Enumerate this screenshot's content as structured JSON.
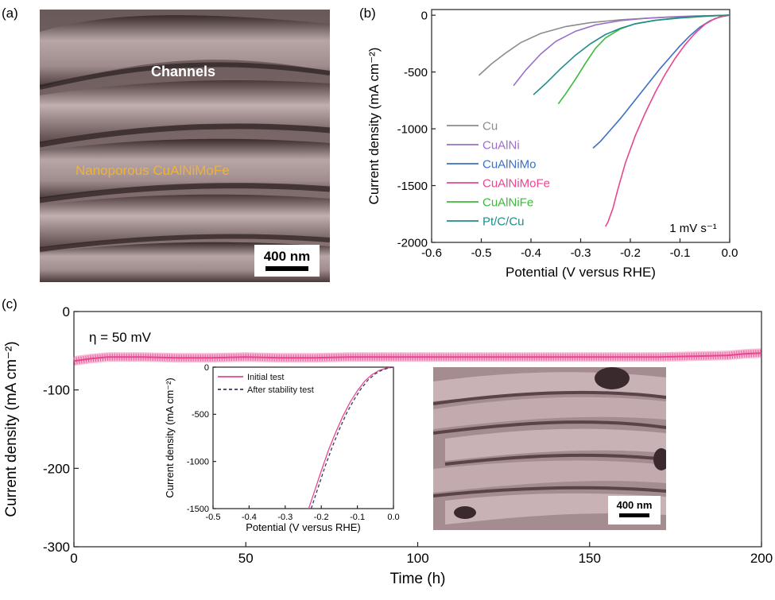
{
  "panels": {
    "a": {
      "letter": "(a)",
      "labels": [
        "Channels",
        "Nanoporous CuAlNiMoFe"
      ],
      "scalebar": "400 nm",
      "colors": {
        "label_white": "#ffffff",
        "label_orange": "#f2b233",
        "sem_base": "#9a8585"
      }
    },
    "b": {
      "letter": "(b)",
      "rate_label": "1 mV s⁻¹"
    },
    "c": {
      "letter": "(c)",
      "eta_label": "η = 50 mV",
      "inset_scalebar": "400 nm"
    }
  },
  "chart_data": [
    {
      "id": "b",
      "type": "line",
      "xlabel": "Potential (V versus RHE)",
      "ylabel": "Current density (mA cm⁻²)",
      "xlim": [
        -0.6,
        0.0
      ],
      "ylim": [
        -2000,
        50
      ],
      "xticks": [
        -0.6,
        -0.5,
        -0.4,
        -0.3,
        -0.2,
        -0.1,
        0.0
      ],
      "xtick_labels": [
        "-0.6",
        "-0.5",
        "-0.4",
        "-0.3",
        "-0.2",
        "-0.1",
        "0.0"
      ],
      "yticks": [
        0,
        -500,
        -1000,
        -1500,
        -2000
      ],
      "ytick_labels": [
        "0",
        "-500",
        "-1000",
        "-1500",
        "-2000"
      ],
      "legend_position": "bottom-left",
      "series": [
        {
          "name": "Cu",
          "color": "#8c8c8c",
          "x": [
            -0.505,
            -0.48,
            -0.45,
            -0.42,
            -0.38,
            -0.33,
            -0.28,
            -0.22,
            -0.15,
            -0.08,
            -0.02,
            0.0
          ],
          "y": [
            -530,
            -430,
            -330,
            -240,
            -160,
            -100,
            -65,
            -40,
            -22,
            -10,
            -3,
            0
          ]
        },
        {
          "name": "CuAlNi",
          "color": "#9b6fc6",
          "x": [
            -0.435,
            -0.41,
            -0.38,
            -0.35,
            -0.31,
            -0.27,
            -0.22,
            -0.17,
            -0.12,
            -0.07,
            -0.02,
            0.0
          ],
          "y": [
            -620,
            -480,
            -340,
            -230,
            -140,
            -85,
            -48,
            -28,
            -15,
            -7,
            -2,
            0
          ]
        },
        {
          "name": "CuAlNiMo",
          "color": "#3c6fc5",
          "x": [
            -0.275,
            -0.26,
            -0.24,
            -0.22,
            -0.2,
            -0.18,
            -0.16,
            -0.14,
            -0.12,
            -0.1,
            -0.08,
            -0.06,
            -0.04,
            -0.02,
            0.0
          ],
          "y": [
            -1170,
            -1110,
            -1010,
            -910,
            -800,
            -690,
            -580,
            -470,
            -370,
            -270,
            -180,
            -105,
            -50,
            -15,
            0
          ]
        },
        {
          "name": "CuAlNiMoFe",
          "color": "#e8468f",
          "x": [
            -0.25,
            -0.245,
            -0.235,
            -0.225,
            -0.21,
            -0.19,
            -0.17,
            -0.15,
            -0.13,
            -0.11,
            -0.09,
            -0.07,
            -0.05,
            -0.03,
            -0.01,
            0.0
          ],
          "y": [
            -1860,
            -1820,
            -1700,
            -1530,
            -1300,
            -1060,
            -860,
            -680,
            -520,
            -380,
            -260,
            -160,
            -80,
            -30,
            -5,
            0
          ]
        },
        {
          "name": "CuAlNiFe",
          "color": "#3cb83c",
          "x": [
            -0.345,
            -0.33,
            -0.31,
            -0.29,
            -0.27,
            -0.25,
            -0.22,
            -0.19,
            -0.15,
            -0.1,
            -0.05,
            -0.02,
            0.0
          ],
          "y": [
            -780,
            -690,
            -560,
            -420,
            -290,
            -200,
            -120,
            -75,
            -45,
            -25,
            -10,
            -3,
            0
          ]
        },
        {
          "name": "Pt/C/Cu",
          "color": "#1f8c8c",
          "x": [
            -0.395,
            -0.37,
            -0.34,
            -0.31,
            -0.28,
            -0.25,
            -0.22,
            -0.19,
            -0.15,
            -0.1,
            -0.05,
            -0.02,
            0.0
          ],
          "y": [
            -700,
            -600,
            -470,
            -350,
            -250,
            -170,
            -115,
            -75,
            -45,
            -22,
            -8,
            -2,
            0
          ]
        }
      ]
    },
    {
      "id": "c",
      "type": "line",
      "xlabel": "Time (h)",
      "ylabel": "Current density (mA cm⁻²)",
      "xlim": [
        0,
        200
      ],
      "ylim": [
        -300,
        0
      ],
      "xticks": [
        0,
        50,
        100,
        150,
        200
      ],
      "xtick_labels": [
        "0",
        "50",
        "100",
        "150",
        "200"
      ],
      "yticks": [
        0,
        -100,
        -200,
        -300
      ],
      "ytick_labels": [
        "0",
        "-100",
        "-200",
        "-300"
      ],
      "series": [
        {
          "name": "",
          "color": "#e8468f",
          "x": [
            0,
            5,
            10,
            20,
            30,
            40,
            50,
            60,
            70,
            80,
            90,
            100,
            110,
            120,
            130,
            140,
            150,
            160,
            170,
            180,
            190,
            195,
            200
          ],
          "y": [
            -63,
            -60,
            -58,
            -58,
            -59,
            -59,
            -58,
            -59,
            -59,
            -58,
            -58,
            -58,
            -58,
            -58,
            -58,
            -58,
            -58,
            -58,
            -58,
            -57,
            -56,
            -54,
            -53
          ]
        }
      ]
    },
    {
      "id": "c-inset",
      "type": "line",
      "xlabel": "Potential (V versus RHE)",
      "ylabel": "Current density (mA cm⁻²)",
      "xlim": [
        -0.5,
        0.0
      ],
      "ylim": [
        -1500,
        0
      ],
      "xticks": [
        -0.5,
        -0.4,
        -0.3,
        -0.2,
        -0.1,
        0.0
      ],
      "xtick_labels": [
        "-0.5",
        "-0.4",
        "-0.3",
        "-0.2",
        "-0.1",
        "0.0"
      ],
      "yticks": [
        0,
        -500,
        -1000,
        -1500
      ],
      "ytick_labels": [
        "0",
        "-500",
        "-1000",
        "-1500"
      ],
      "legend_position": "top-left",
      "series": [
        {
          "name": "Initial test",
          "color": "#e8468f",
          "dash": "",
          "x": [
            -0.235,
            -0.22,
            -0.2,
            -0.18,
            -0.16,
            -0.14,
            -0.12,
            -0.1,
            -0.08,
            -0.06,
            -0.04,
            -0.02,
            0.0
          ],
          "y": [
            -1500,
            -1330,
            -1100,
            -880,
            -690,
            -520,
            -370,
            -250,
            -150,
            -80,
            -35,
            -10,
            0
          ]
        },
        {
          "name": "After stability test",
          "color": "#3a3a5a",
          "dash": "4,3",
          "x": [
            -0.228,
            -0.21,
            -0.19,
            -0.17,
            -0.15,
            -0.13,
            -0.11,
            -0.09,
            -0.07,
            -0.05,
            -0.03,
            -0.01,
            0.0
          ],
          "y": [
            -1500,
            -1290,
            -1060,
            -850,
            -660,
            -490,
            -350,
            -230,
            -135,
            -70,
            -28,
            -5,
            0
          ]
        }
      ]
    }
  ]
}
